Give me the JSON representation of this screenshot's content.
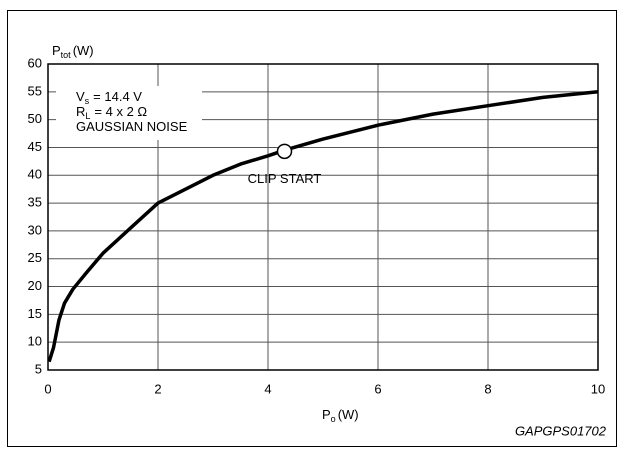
{
  "chart_data": {
    "type": "line",
    "y_label": {
      "symbol": "P",
      "sub": "tot",
      "unit": "(W)"
    },
    "x_label": {
      "symbol": "P",
      "sub": "o",
      "unit": "(W)"
    },
    "notes": [
      {
        "symbol": "V",
        "sub": "s",
        "rest": "= 14.4 V"
      },
      {
        "symbol": "R",
        "sub": "L",
        "rest": "= 4 x 2 Ω"
      },
      {
        "symbol": "GAUSSIAN NOISE",
        "sub": "",
        "rest": ""
      }
    ],
    "code": "GAPGPS01702",
    "series": [
      {
        "name": "Ptot",
        "color": "#000000",
        "x": [
          0.02,
          0.1,
          0.2,
          0.3,
          0.45,
          0.7,
          1,
          1.5,
          2,
          2.5,
          3,
          3.5,
          4,
          4.3,
          5,
          6,
          7,
          8,
          9,
          10
        ],
        "values": [
          6.5,
          9,
          14,
          17,
          19.5,
          22.5,
          26,
          30.5,
          35,
          37.5,
          40,
          42,
          43.5,
          44.5,
          46.5,
          49,
          51,
          52.5,
          54,
          55
        ]
      }
    ],
    "annotations": [
      {
        "text": "CLIP START",
        "x": 4.3,
        "y": 44.3
      }
    ],
    "xlim": [
      0,
      10
    ],
    "xticks": [
      0,
      2,
      4,
      6,
      8,
      10
    ],
    "ylim": [
      5,
      60
    ],
    "yticks": [
      5,
      10,
      15,
      20,
      25,
      30,
      35,
      40,
      45,
      50,
      55,
      60
    ],
    "grid": true
  }
}
